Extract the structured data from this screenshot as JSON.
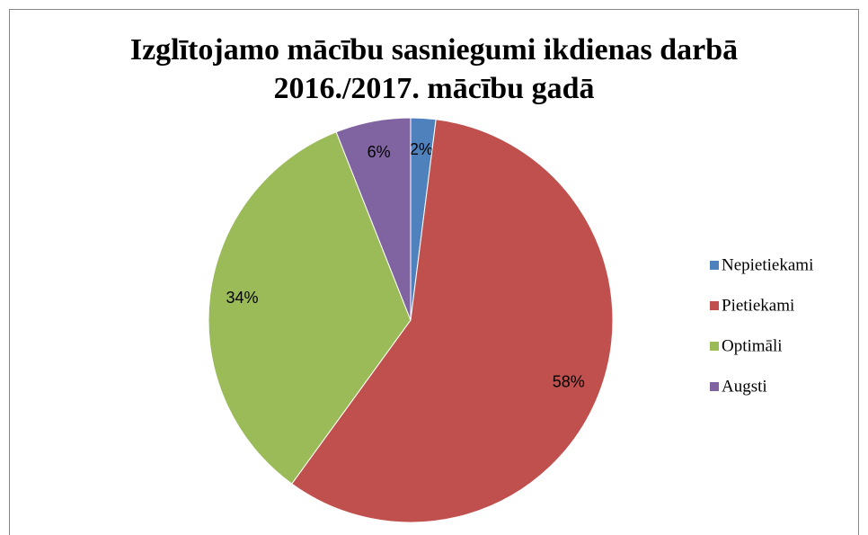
{
  "chart_data": {
    "type": "pie",
    "title": [
      "Izglītojamo mācību sasniegumi ikdienas darbā",
      "2016./2017. mācību gadā"
    ],
    "categories": [
      "Nepietiekami",
      "Pietiekami",
      "Optimāli",
      "Augsti"
    ],
    "values": [
      2,
      58,
      34,
      6
    ],
    "value_labels": [
      "2%",
      "58%",
      "34%",
      "6%"
    ],
    "colors": [
      "#4f81bd",
      "#c0504d",
      "#9bbb59",
      "#8064a2"
    ],
    "legend": "right"
  }
}
